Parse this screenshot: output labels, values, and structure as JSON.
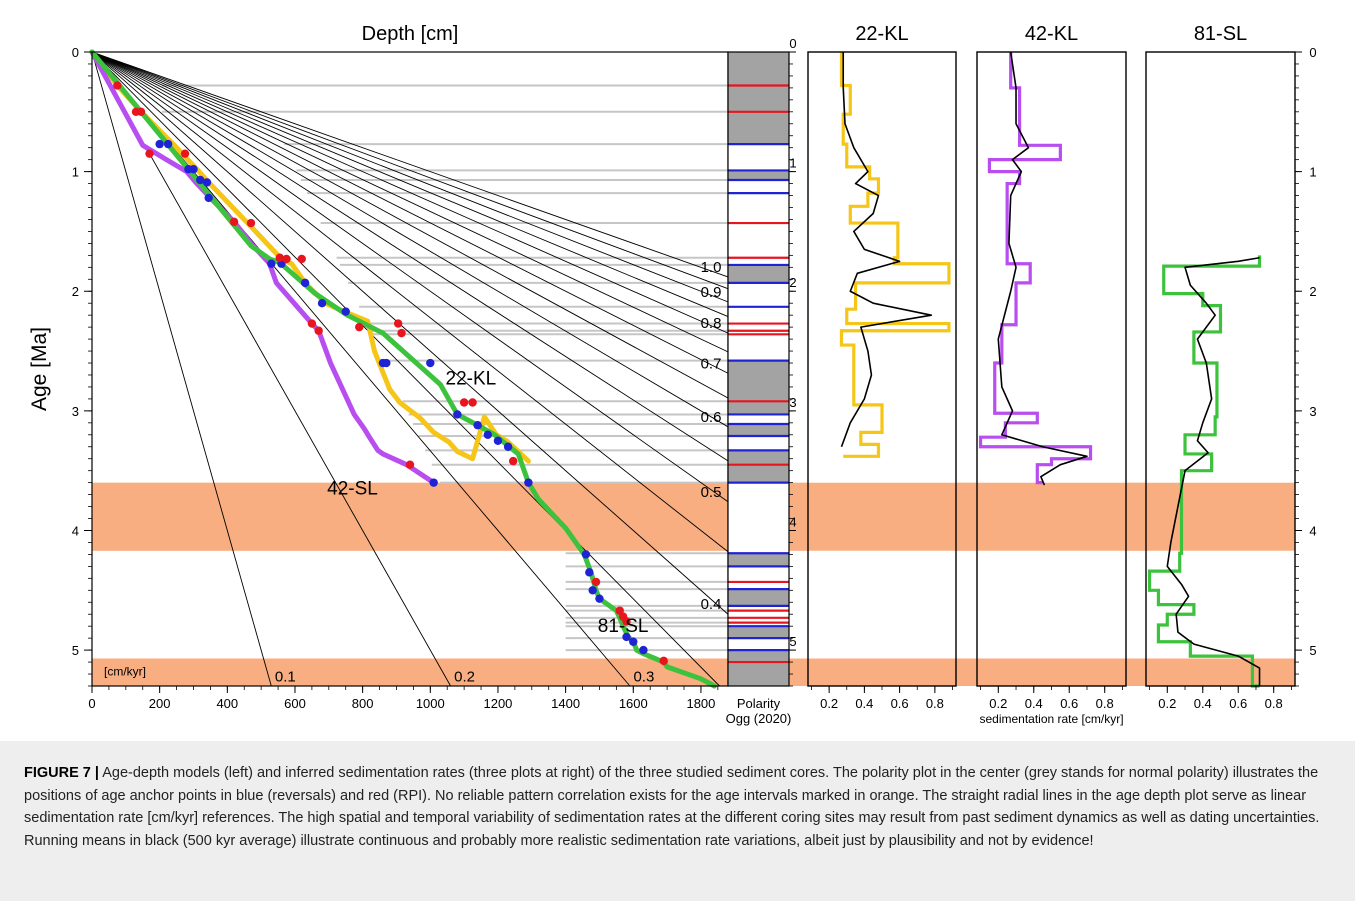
{
  "figure": {
    "label": "FIGURE 7 |",
    "caption": "Age-depth models (left) and inferred sedimentation rates (three plots at right) of the three studied sediment cores. The polarity plot in the center (grey stands for normal polarity) illustrates the positions of age anchor points in blue (reversals) and red (RPI). No reliable pattern correlation exists for the age intervals marked in orange. The straight radial lines in the age depth plot serve as linear sedimentation rate [cm/kyr] references. The high spatial and temporal variability of sedimentation rates at the different coring sites may result from past sediment dynamics as well as dating uncertainties. Running means in black (500 kyr average) illustrate continuous and probably more realistic sedimentation rate variations, albeit just by plausibility and not by evidence!"
  },
  "colors": {
    "c22KL": "#f5c518",
    "c42SL": "#b84ef0",
    "c81SL": "#3cc23c",
    "anchorBlue": "#1f23d6",
    "anchorRed": "#e8141e",
    "orange": "#f8ae80",
    "normalPolarity": "#a3a3a3",
    "gridGrey": "#c6c6c6",
    "runningMean": "#000000"
  },
  "chart_data": [
    {
      "type": "line",
      "title": "Depth [cm]",
      "xlabel": "Depth [cm]",
      "ylabel": "Age [Ma]",
      "xlim": [
        0,
        1880
      ],
      "ylim": [
        5.3,
        0
      ],
      "xticks": [
        0,
        200,
        400,
        600,
        800,
        1000,
        1200,
        1400,
        1600,
        1800
      ],
      "yticks": [
        0,
        1,
        2,
        3,
        4,
        5
      ],
      "orange_intervals": [
        [
          3.6,
          4.17
        ],
        [
          5.07,
          5.3
        ]
      ],
      "rate_unit_label": "[cm/kyr]",
      "rate_lines": [
        {
          "label": "0.1",
          "rate": 0.1
        },
        {
          "label": "0.2",
          "rate": 0.2
        },
        {
          "label": "0.3",
          "rate": 0.3
        },
        {
          "label": "",
          "rate": 0.35
        },
        {
          "label": "0.4",
          "rate": 0.4
        },
        {
          "label": "",
          "rate": 0.45
        },
        {
          "label": "0.5",
          "rate": 0.5
        },
        {
          "label": "",
          "rate": 0.55
        },
        {
          "label": "0.6",
          "rate": 0.6
        },
        {
          "label": "",
          "rate": 0.65
        },
        {
          "label": "0.7",
          "rate": 0.7
        },
        {
          "label": "",
          "rate": 0.75
        },
        {
          "label": "0.8",
          "rate": 0.8
        },
        {
          "label": "",
          "rate": 0.85
        },
        {
          "label": "0.9",
          "rate": 0.9
        },
        {
          "label": "",
          "rate": 0.95
        },
        {
          "label": "1.0",
          "rate": 1.0
        }
      ],
      "series": [
        {
          "name": "22-KL",
          "color": "#f5c518",
          "x": [
            0,
            75,
            145,
            240,
            310,
            345,
            460,
            560,
            590,
            630,
            690,
            745,
            815,
            835,
            880,
            910,
            970,
            1010,
            1055,
            1080,
            1125,
            1160,
            1195,
            1225,
            1245,
            1290
          ],
          "y": [
            0,
            0.28,
            0.5,
            0.77,
            0.98,
            1.09,
            1.43,
            1.73,
            1.77,
            1.93,
            2.1,
            2.17,
            2.25,
            2.5,
            2.82,
            2.93,
            3.06,
            3.18,
            3.26,
            3.34,
            3.4,
            3.05,
            3.2,
            3.25,
            3.3,
            3.42
          ]
        },
        {
          "name": "42-SL",
          "color": "#b84ef0",
          "x": [
            0,
            150,
            220,
            280,
            310,
            350,
            420,
            470,
            525,
            545,
            650,
            670,
            705,
            775,
            805,
            820,
            845,
            860,
            930,
            1010
          ],
          "y": [
            0,
            0.78,
            0.9,
            1.0,
            1.1,
            1.22,
            1.42,
            1.6,
            1.77,
            1.93,
            2.27,
            2.33,
            2.6,
            3.03,
            3.15,
            3.22,
            3.33,
            3.36,
            3.45,
            3.6
          ],
          "points": [
            [
              150,
              0.78
            ],
            [
              220,
              0.9
            ],
            [
              280,
              1.0
            ],
            [
              310,
              1.1
            ],
            [
              350,
              1.22
            ],
            [
              525,
              1.77
            ],
            [
              545,
              1.93
            ],
            [
              705,
              2.6
            ],
            [
              775,
              3.03
            ],
            [
              805,
              3.15
            ],
            [
              820,
              3.22
            ],
            [
              845,
              3.33
            ],
            [
              1010,
              3.6
            ]
          ]
        },
        {
          "name": "81-SL",
          "color": "#3cc23c",
          "x": [
            0,
            470,
            525,
            555,
            660,
            755,
            860,
            1030,
            1080,
            1140,
            1190,
            1260,
            1290,
            1320,
            1400,
            1455,
            1475,
            1490,
            1500,
            1550,
            1560,
            1570,
            1585,
            1600,
            1610,
            1630,
            1690,
            1700,
            1800,
            1840
          ],
          "y": [
            0,
            1.62,
            1.73,
            1.76,
            2.02,
            2.2,
            2.35,
            2.78,
            3.03,
            3.12,
            3.2,
            3.36,
            3.6,
            3.74,
            3.98,
            4.2,
            4.35,
            4.5,
            4.57,
            4.67,
            4.73,
            4.8,
            4.89,
            4.93,
            5.0,
            5.03,
            5.1,
            5.14,
            5.24,
            5.3
          ]
        }
      ],
      "points_blue": [
        [
          200,
          0.77
        ],
        [
          225,
          0.77
        ],
        [
          285,
          0.98
        ],
        [
          300,
          0.98
        ],
        [
          320,
          1.07
        ],
        [
          340,
          1.09
        ],
        [
          345,
          1.22
        ],
        [
          530,
          1.77
        ],
        [
          560,
          1.77
        ],
        [
          630,
          1.93
        ],
        [
          680,
          2.1
        ],
        [
          750,
          2.17
        ],
        [
          860,
          2.6
        ],
        [
          870,
          2.6
        ],
        [
          1000,
          2.6
        ],
        [
          1080,
          3.03
        ],
        [
          1140,
          3.12
        ],
        [
          1170,
          3.2
        ],
        [
          1200,
          3.25
        ],
        [
          1230,
          3.3
        ],
        [
          1290,
          3.6
        ],
        [
          1460,
          4.2
        ],
        [
          1470,
          4.35
        ],
        [
          1480,
          4.5
        ],
        [
          1500,
          4.57
        ],
        [
          1580,
          4.89
        ],
        [
          1600,
          4.93
        ],
        [
          1630,
          5.0
        ],
        [
          1010,
          3.6
        ]
      ],
      "points_red": [
        [
          75,
          0.28
        ],
        [
          130,
          0.5
        ],
        [
          145,
          0.5
        ],
        [
          170,
          0.85
        ],
        [
          275,
          0.85
        ],
        [
          420,
          1.42
        ],
        [
          470,
          1.43
        ],
        [
          555,
          1.72
        ],
        [
          575,
          1.73
        ],
        [
          620,
          1.73
        ],
        [
          650,
          2.27
        ],
        [
          670,
          2.33
        ],
        [
          790,
          2.3
        ],
        [
          905,
          2.27
        ],
        [
          915,
          2.35
        ],
        [
          940,
          3.45
        ],
        [
          1100,
          2.93
        ],
        [
          1125,
          2.93
        ],
        [
          1245,
          3.42
        ],
        [
          1490,
          4.43
        ],
        [
          1560,
          4.67
        ],
        [
          1570,
          4.72
        ],
        [
          1580,
          4.76
        ],
        [
          1690,
          5.09
        ]
      ]
    },
    {
      "type": "polarity",
      "title": "Polarity\nOgg (2020)",
      "ylim": [
        5.3,
        0
      ],
      "normal_intervals": [
        [
          0,
          0.77
        ],
        [
          0.99,
          1.07
        ],
        [
          1.78,
          1.93
        ],
        [
          2.58,
          3.03
        ],
        [
          3.11,
          3.21
        ],
        [
          3.33,
          3.6
        ],
        [
          4.19,
          4.3
        ],
        [
          4.49,
          4.63
        ],
        [
          4.8,
          4.9
        ],
        [
          5.0,
          5.3
        ]
      ],
      "blue_ticks": [
        0.77,
        0.99,
        1.07,
        1.18,
        1.78,
        1.93,
        2.13,
        2.58,
        3.03,
        3.11,
        3.21,
        3.33,
        3.6,
        4.19,
        4.3,
        4.49,
        4.63,
        4.8,
        4.9,
        5.0
      ],
      "red_ticks": [
        0.28,
        0.5,
        1.43,
        1.72,
        2.27,
        2.33,
        2.36,
        2.92,
        3.45,
        4.43,
        4.67,
        4.73,
        4.77,
        5.1
      ]
    },
    {
      "type": "line",
      "title": "22-KL",
      "xlim": [
        0.08,
        0.92
      ],
      "ylim": [
        5.3,
        0
      ],
      "xticks": [
        0.2,
        0.4,
        0.6,
        0.8
      ],
      "step_series": {
        "name": "22-KL",
        "color": "#f5c518",
        "depth_breaks": [
          0,
          0.28,
          0.52,
          0.77,
          0.96,
          1.06,
          1.18,
          1.29,
          1.43,
          1.72,
          1.77,
          1.93,
          2.15,
          2.27,
          2.33,
          2.45,
          2.95,
          3.18,
          3.28,
          3.38
        ],
        "values": [
          0.27,
          0.32,
          0.28,
          0.3,
          0.43,
          0.48,
          0.42,
          0.32,
          0.59,
          0.57,
          0.88,
          0.35,
          0.3,
          0.88,
          0.27,
          0.34,
          0.5,
          0.38,
          0.48,
          0.28
        ]
      },
      "mean_series": {
        "y": [
          0,
          0.3,
          0.6,
          0.8,
          1.0,
          1.1,
          1.2,
          1.35,
          1.5,
          1.65,
          1.75,
          1.85,
          2.0,
          2.1,
          2.2,
          2.3,
          2.5,
          2.7,
          2.9,
          3.1,
          3.3
        ],
        "values": [
          0.28,
          0.28,
          0.29,
          0.34,
          0.42,
          0.35,
          0.48,
          0.45,
          0.34,
          0.4,
          0.6,
          0.36,
          0.32,
          0.45,
          0.78,
          0.38,
          0.42,
          0.44,
          0.4,
          0.32,
          0.27
        ]
      }
    },
    {
      "type": "line",
      "title": "42-KL",
      "xlabel": "sedimentation rate [cm/kyr]",
      "xlim": [
        0.08,
        0.92
      ],
      "ylim": [
        5.3,
        0
      ],
      "xticks": [
        0.2,
        0.4,
        0.6,
        0.8
      ],
      "step_series": {
        "name": "42-KL",
        "color": "#b84ef0",
        "depth_breaks": [
          0,
          0.3,
          0.78,
          0.9,
          1.0,
          1.1,
          1.62,
          1.77,
          1.93,
          2.28,
          2.6,
          3.02,
          3.1,
          3.22,
          3.3,
          3.4,
          3.45,
          3.6
        ],
        "values": [
          0.27,
          0.32,
          0.55,
          0.15,
          0.32,
          0.25,
          0.25,
          0.38,
          0.3,
          0.22,
          0.18,
          0.42,
          0.24,
          0.1,
          0.72,
          0.5,
          0.42,
          0.45
        ]
      },
      "mean_series": {
        "y": [
          0,
          0.3,
          0.6,
          0.8,
          0.9,
          1.0,
          1.2,
          1.6,
          1.8,
          2.0,
          2.4,
          2.8,
          3.0,
          3.2,
          3.3,
          3.38,
          3.45,
          3.55,
          3.62
        ],
        "values": [
          0.27,
          0.3,
          0.3,
          0.37,
          0.28,
          0.33,
          0.27,
          0.26,
          0.3,
          0.27,
          0.2,
          0.22,
          0.28,
          0.22,
          0.45,
          0.7,
          0.55,
          0.44,
          0.46
        ]
      }
    },
    {
      "type": "line",
      "title": "81-SL",
      "xlim": [
        0.08,
        0.92
      ],
      "ylim": [
        5.3,
        0
      ],
      "xticks": [
        0.2,
        0.4,
        0.6,
        0.8
      ],
      "step_series": {
        "name": "81-SL",
        "color": "#3cc23c",
        "depth_breaks": [
          1.7,
          1.79,
          2.02,
          2.12,
          2.34,
          2.6,
          3.05,
          3.2,
          3.36,
          3.5,
          4.19,
          4.34,
          4.5,
          4.62,
          4.7,
          4.79,
          4.93,
          5.05,
          5.3
        ],
        "values": [
          0.72,
          0.18,
          0.4,
          0.5,
          0.35,
          0.48,
          0.47,
          0.3,
          0.45,
          0.28,
          0.27,
          0.1,
          0.15,
          0.35,
          0.2,
          0.15,
          0.33,
          0.68,
          0.72
        ]
      },
      "mean_series": {
        "y": [
          1.72,
          1.75,
          1.8,
          1.95,
          2.1,
          2.2,
          2.4,
          2.6,
          2.9,
          3.1,
          3.25,
          3.35,
          3.5,
          3.8,
          4.1,
          4.3,
          4.45,
          4.55,
          4.7,
          4.85,
          4.95,
          5.05,
          5.15,
          5.3
        ],
        "values": [
          0.72,
          0.6,
          0.3,
          0.33,
          0.42,
          0.47,
          0.37,
          0.42,
          0.45,
          0.4,
          0.37,
          0.43,
          0.3,
          0.26,
          0.22,
          0.2,
          0.28,
          0.32,
          0.25,
          0.26,
          0.35,
          0.6,
          0.72,
          0.72
        ]
      }
    }
  ]
}
